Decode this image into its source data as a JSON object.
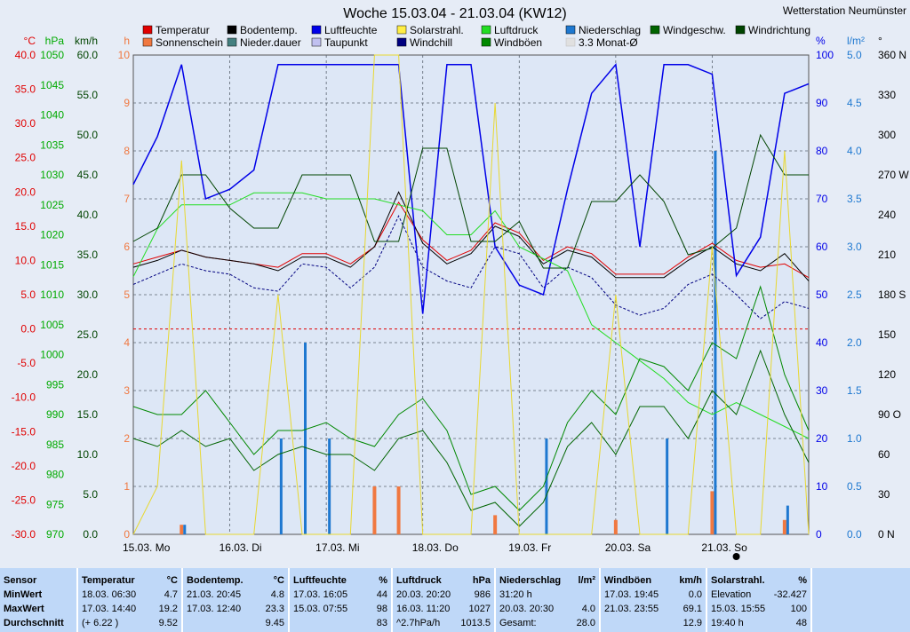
{
  "title": "Woche 15.03.04 - 21.03.04 (KW12)",
  "station": "Wetterstation Neumünster",
  "colors": {
    "bg": "#e6ecf6",
    "plot": "#dde7f6",
    "grid": "#5a6470"
  },
  "legend": [
    {
      "label": "Temperatur",
      "color": "#e00000"
    },
    {
      "label": "Bodentemp.",
      "color": "#000000"
    },
    {
      "label": "Luftfeuchte",
      "color": "#0000e8"
    },
    {
      "label": "Solarstrahl.",
      "color": "#ffee44"
    },
    {
      "label": "Luftdruck",
      "color": "#22dd22"
    },
    {
      "label": "Niederschlag",
      "color": "#1e78d0"
    },
    {
      "label": "Windgeschw.",
      "color": "#006400"
    },
    {
      "label": "Windrichtung",
      "color": "#004400"
    },
    {
      "label": "Sonnenschein",
      "color": "#f07840"
    },
    {
      "label": "Nieder.dauer",
      "color": "#448080"
    },
    {
      "label": "Taupunkt",
      "color": "#c0c0f0"
    },
    {
      "label": "Windchill",
      "color": "#000080"
    },
    {
      "label": "Windböen",
      "color": "#008800"
    },
    {
      "label": "3.3 Monat-Ø",
      "color": "#e0e0e0"
    }
  ],
  "axes": {
    "temp": {
      "unit": "°C",
      "ticks": [
        "40.0",
        "35.0",
        "30.0",
        "25.0",
        "20.0",
        "15.0",
        "10.0",
        "5.0",
        "0.0",
        "-5.0",
        "-10.0",
        "-15.0",
        "-20.0",
        "-25.0",
        "-30.0"
      ],
      "color": "#e00000"
    },
    "pres": {
      "unit": "hPa",
      "ticks": [
        "1050",
        "1045",
        "1040",
        "1035",
        "1030",
        "1025",
        "1020",
        "1015",
        "1010",
        "1005",
        "1000",
        "995",
        "990",
        "985",
        "980",
        "975",
        "970"
      ],
      "color": "#00aa00"
    },
    "wind": {
      "unit": "km/h",
      "ticks": [
        "60.0",
        "55.0",
        "50.0",
        "45.0",
        "40.0",
        "35.0",
        "30.0",
        "25.0",
        "20.0",
        "15.0",
        "10.0",
        "5.0",
        "0.0"
      ],
      "color": "#004400"
    },
    "sun": {
      "unit": "h",
      "ticks": [
        "10",
        "9",
        "8",
        "7",
        "6",
        "5",
        "4",
        "3",
        "2",
        "1",
        "0"
      ],
      "color": "#f07840"
    },
    "hum": {
      "unit": "%",
      "ticks": [
        "100",
        "90",
        "80",
        "70",
        "60",
        "50",
        "40",
        "30",
        "20",
        "10",
        "0"
      ],
      "color": "#0000e8"
    },
    "rain": {
      "unit": "l/m²",
      "ticks": [
        "5.0",
        "4.5",
        "4.0",
        "3.5",
        "3.0",
        "2.5",
        "2.0",
        "1.5",
        "1.0",
        "0.5",
        "0.0"
      ],
      "color": "#1e78d0"
    },
    "dir": {
      "unit": "°",
      "ticks": [
        "360 N",
        "330",
        "300",
        "270 W",
        "240",
        "210",
        "180 S",
        "150",
        "120",
        "90 O",
        "60",
        "30",
        "0 N"
      ],
      "color": "#004400"
    }
  },
  "days": [
    "15.03.  Mo",
    "16.03.  Di",
    "17.03.  Mi",
    "18.03.  Do",
    "19.03.  Fr",
    "20.03.  Sa",
    "21.03.  So"
  ],
  "chart_data": {
    "type": "line",
    "title": "Woche 15.03.04 - 21.03.04 (KW12)",
    "x_unit": "hours since 15.03. 00:00",
    "x": [
      0,
      6,
      12,
      18,
      24,
      30,
      36,
      42,
      48,
      54,
      60,
      66,
      72,
      78,
      84,
      90,
      96,
      102,
      108,
      114,
      120,
      126,
      132,
      138,
      144,
      150,
      156,
      162,
      168
    ],
    "series": [
      {
        "name": "Temperatur",
        "unit": "°C",
        "values": [
          9.5,
          10.5,
          11.5,
          10.5,
          10.0,
          9.5,
          9.0,
          11.0,
          11.0,
          9.5,
          12.0,
          18.5,
          13.0,
          10.0,
          11.5,
          15.5,
          14.0,
          10.0,
          12.0,
          11.0,
          8.0,
          8.0,
          8.0,
          10.5,
          12.5,
          10.0,
          9.0,
          9.5,
          7.5
        ]
      },
      {
        "name": "Bodentemp.",
        "unit": "°C",
        "values": [
          9.0,
          10.0,
          11.5,
          10.5,
          10.0,
          9.5,
          8.5,
          10.5,
          10.5,
          9.0,
          12.0,
          20.0,
          12.5,
          9.5,
          11.0,
          15.0,
          13.5,
          9.5,
          11.5,
          10.5,
          7.5,
          7.5,
          7.5,
          10.0,
          12.0,
          9.5,
          8.5,
          11.0,
          7.0
        ]
      },
      {
        "name": "Windchill",
        "unit": "°C",
        "values": [
          6.5,
          8.0,
          9.5,
          8.5,
          8.0,
          6.0,
          5.5,
          9.5,
          9.0,
          6.0,
          9.0,
          16.5,
          9.0,
          7.0,
          6.0,
          12.0,
          11.0,
          6.0,
          9.0,
          7.5,
          3.5,
          2.0,
          3.0,
          6.5,
          8.0,
          5.0,
          1.5,
          4.0,
          3.0
        ]
      },
      {
        "name": "Luftfeuchte",
        "unit": "%",
        "values": [
          73,
          83,
          98,
          70,
          72,
          76,
          98,
          98,
          98,
          98,
          98,
          98,
          46,
          98,
          98,
          60,
          52,
          50,
          72,
          92,
          98,
          60,
          98,
          98,
          96,
          54,
          62,
          92,
          94
        ]
      },
      {
        "name": "Luftdruck",
        "unit": "hPa",
        "values": [
          1013,
          1021,
          1025,
          1025,
          1025,
          1027,
          1027,
          1027,
          1026,
          1026,
          1026,
          1025,
          1024,
          1020,
          1020,
          1024,
          1018,
          1016,
          1014,
          1005,
          1002,
          999,
          996,
          992,
          990,
          992,
          990,
          988,
          986
        ]
      },
      {
        "name": "Windgeschw.",
        "unit": "km/h",
        "values": [
          12,
          11,
          13,
          11,
          12,
          8,
          10,
          11,
          10,
          10,
          8,
          12,
          13,
          9,
          3,
          4,
          1,
          4,
          11,
          14,
          10,
          16,
          16,
          12,
          18,
          15,
          23,
          15,
          9
        ]
      },
      {
        "name": "Windböen",
        "unit": "km/h",
        "values": [
          16,
          15,
          15,
          18,
          14,
          10,
          13,
          13,
          14,
          12,
          11,
          15,
          17,
          13,
          5,
          6,
          3,
          6,
          14,
          18,
          15,
          22,
          21,
          18,
          24,
          22,
          31,
          20,
          13
        ]
      },
      {
        "name": "Windrichtung",
        "unit": "°",
        "values": [
          220,
          230,
          270,
          270,
          245,
          230,
          230,
          270,
          270,
          270,
          220,
          220,
          290,
          290,
          220,
          220,
          235,
          200,
          200,
          250,
          250,
          270,
          250,
          210,
          215,
          230,
          300,
          270,
          270
        ]
      },
      {
        "name": "Solarstrahl.",
        "unit": "%",
        "values": [
          0,
          10,
          78,
          0,
          0,
          0,
          50,
          0,
          0,
          0,
          100,
          100,
          0,
          0,
          0,
          90,
          0,
          0,
          0,
          0,
          50,
          0,
          0,
          0,
          60,
          0,
          0,
          80,
          0
        ]
      }
    ],
    "sunshine_h": [
      0,
      0,
      0.2,
      0,
      0,
      0,
      0,
      0,
      0,
      0,
      1.0,
      1.0,
      0,
      0,
      0,
      0.4,
      0,
      0,
      0,
      0,
      0.3,
      0,
      0,
      0,
      0.9,
      0,
      0,
      0.3,
      0
    ],
    "rain_l": [
      0,
      0,
      0.1,
      0,
      0,
      0,
      1.0,
      2.0,
      1.0,
      0,
      0,
      0,
      0,
      0,
      0,
      0,
      0,
      1.0,
      0,
      0,
      0,
      0,
      1.0,
      0,
      4.0,
      0,
      0,
      0.3,
      0
    ],
    "ylim_temp": [
      -30,
      40
    ],
    "ylim_hum": [
      0,
      100
    ],
    "ylim_pres": [
      970,
      1050
    ],
    "ylim_wind": [
      0,
      60
    ]
  },
  "stats": {
    "columns": [
      {
        "head": [
          "Sensor",
          ""
        ],
        "rows": [
          [
            "MinWert",
            ""
          ],
          [
            "MaxWert",
            ""
          ],
          [
            "Durchschnitt",
            ""
          ]
        ]
      },
      {
        "head": [
          "Temperatur",
          "°C"
        ],
        "rows": [
          [
            "18.03.  06:30",
            "4.7"
          ],
          [
            "17.03.  14:40",
            "19.2"
          ],
          [
            "(+ 6.22 )",
            "9.52"
          ]
        ]
      },
      {
        "head": [
          "Bodentemp.",
          "°C"
        ],
        "rows": [
          [
            "21.03.  20:45",
            "4.8"
          ],
          [
            "17.03.  12:40",
            "23.3"
          ],
          [
            "",
            "9.45"
          ]
        ]
      },
      {
        "head": [
          "Luftfeuchte",
          "%"
        ],
        "rows": [
          [
            "17.03.  16:05",
            "44"
          ],
          [
            "15.03.  07:55",
            "98"
          ],
          [
            "",
            "83"
          ]
        ]
      },
      {
        "head": [
          "Luftdruck",
          "hPa"
        ],
        "rows": [
          [
            "20.03.  20:20",
            "986"
          ],
          [
            "16.03.  11:20",
            "1027"
          ],
          [
            "^2.7hPa/h",
            "1013.5"
          ]
        ]
      },
      {
        "head": [
          "Niederschlag",
          "l/m²"
        ],
        "rows": [
          [
            "31:20 h",
            ""
          ],
          [
            "20.03.  20:30",
            "4.0"
          ],
          [
            "Gesamt:",
            "28.0"
          ]
        ]
      },
      {
        "head": [
          "Windböen",
          "km/h"
        ],
        "rows": [
          [
            "17.03.  19:45",
            "0.0"
          ],
          [
            "21.03.  23:55",
            "69.1"
          ],
          [
            "",
            "12.9"
          ]
        ]
      },
      {
        "head": [
          "Solarstrahl.",
          "%"
        ],
        "rows": [
          [
            "Elevation",
            "-32.427"
          ],
          [
            "15.03.  15:55",
            "100"
          ],
          [
            "19:40 h",
            "48"
          ]
        ]
      }
    ]
  }
}
